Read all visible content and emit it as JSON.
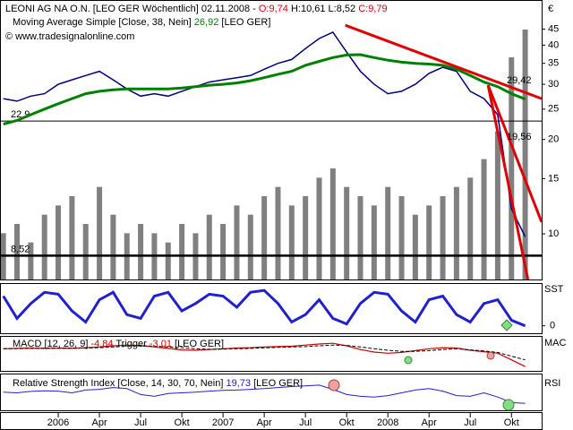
{
  "chart_data": {
    "type": "line",
    "header": {
      "instrument": "LEONI AG NA O.N. [LEO GER  Wöchentlich] 02.11.2008 - ",
      "open": "O:9,74",
      "hl": " H:10,61 L:8,52 ",
      "close": "C:9,79",
      "ma_label": "Moving Average Simple [Close, 38, Nein] ",
      "ma_value": "26,92",
      "ma_suffix": " [LEO GER]",
      "copyright": "© www.tradesignalonline.com",
      "currency": "€"
    },
    "log_scale": true,
    "xlim": [
      -4.24,
      35.2
    ],
    "xticks": [
      {
        "value": 0,
        "label": "2006"
      },
      {
        "value": 3,
        "label": "Apr"
      },
      {
        "value": 6,
        "label": "Jul"
      },
      {
        "value": 9,
        "label": "Okt"
      },
      {
        "value": 12,
        "label": "2007"
      },
      {
        "value": 15,
        "label": "Apr"
      },
      {
        "value": 18,
        "label": "Jul"
      },
      {
        "value": 21,
        "label": "Okt"
      },
      {
        "value": 24,
        "label": "2008"
      },
      {
        "value": 27,
        "label": "Apr"
      },
      {
        "value": 30,
        "label": "Jul"
      },
      {
        "value": 33,
        "label": "Okt"
      }
    ],
    "ylim": [
      7.15,
      55
    ],
    "yticks": [
      45,
      40,
      35,
      30,
      25,
      20,
      15,
      10
    ],
    "x": [
      -4,
      -3,
      -2,
      -1,
      0,
      1,
      2,
      3,
      4,
      5,
      6,
      7,
      8,
      9,
      10,
      11,
      12,
      13,
      14,
      15,
      16,
      17,
      18,
      19,
      20,
      21,
      22,
      23,
      24,
      25,
      26,
      27,
      28,
      29,
      30,
      31,
      32,
      33,
      34
    ],
    "price": {
      "color": "#000080",
      "values": [
        27,
        26.5,
        27.5,
        28,
        30,
        31,
        32,
        33,
        31,
        29,
        27.5,
        28,
        27.5,
        28.5,
        29.5,
        30.5,
        31,
        31.5,
        32,
        33.5,
        35,
        36,
        39,
        42,
        44,
        38,
        33,
        30,
        28,
        28.5,
        30,
        32.5,
        34,
        33,
        28.5,
        27,
        24,
        12,
        9.79
      ]
    },
    "ma": {
      "color": "#008000",
      "values": [
        22.4,
        23,
        24,
        25,
        26,
        27,
        28,
        28.5,
        28.8,
        29,
        29,
        29,
        29,
        29.2,
        29.5,
        29.8,
        30,
        30.3,
        30.8,
        31.5,
        32.3,
        33,
        34.5,
        35.5,
        36.5,
        37.2,
        37.3,
        36.5,
        35.8,
        35.3,
        35,
        34.8,
        34.5,
        33.5,
        32,
        30.5,
        29.5,
        28,
        26.92
      ]
    },
    "volume": {
      "color": "#808080",
      "ylim": [
        0,
        30
      ],
      "values": [
        5,
        6,
        4,
        7,
        8,
        9,
        6,
        10,
        7,
        5,
        6,
        5,
        4,
        6,
        5,
        7,
        6,
        8,
        7,
        9,
        10,
        8,
        9,
        11,
        12,
        10,
        9,
        8,
        10,
        9,
        7,
        8,
        9,
        10,
        11,
        13,
        16,
        24,
        27
      ]
    },
    "levels": [
      {
        "value": 22.9,
        "label": "22,9"
      },
      {
        "value": 8.52,
        "label": "8,52"
      }
    ],
    "trendlines": [
      {
        "x": [
          20.9,
          35.2
        ],
        "y": [
          46.3,
          27.0
        ],
        "label": "29,42",
        "color": "#e00000"
      },
      {
        "x": [
          31.3,
          35.2
        ],
        "y": [
          29.8,
          10.9
        ],
        "color": "#e00000"
      },
      {
        "x": [
          31.3,
          34.2
        ],
        "y": [
          29.8,
          7.15
        ],
        "label": "19,56",
        "color": "#e00000"
      }
    ],
    "sst": {
      "label": "SST",
      "ylim": [
        -20,
        110
      ],
      "yticks": [
        0
      ],
      "color": "#2020d0",
      "values": [
        80,
        20,
        60,
        90,
        85,
        40,
        10,
        70,
        90,
        30,
        20,
        80,
        90,
        40,
        60,
        85,
        80,
        50,
        90,
        95,
        60,
        10,
        30,
        70,
        20,
        5,
        60,
        90,
        85,
        40,
        10,
        70,
        80,
        30,
        10,
        60,
        70,
        15,
        0
      ]
    },
    "macd": {
      "label": "MAC",
      "title": "MACD [12, 26, 9] ",
      "value": "-4,84",
      "trigger_label": " Trigger ",
      "trigger_value": "-3,01",
      "suffix": " [LEO GER]",
      "ylim": [
        -6,
        3
      ],
      "color": "#d00000",
      "trigger_color": "#000000",
      "values": [
        0,
        0.1,
        0.2,
        0.1,
        0.2,
        0.1,
        0.3,
        0.5,
        0.8,
        1,
        0.9,
        0.5,
        0.1,
        -0.3,
        -0.4,
        -0.2,
        0,
        0.2,
        0.3,
        0.5,
        0.6,
        0.7,
        1,
        1.3,
        1.5,
        0.8,
        -0.2,
        -0.9,
        -1.2,
        -1,
        -0.5,
        0,
        0.3,
        0.2,
        -0.4,
        -0.8,
        -1.2,
        -3,
        -4.84
      ],
      "trigger": [
        0,
        0.05,
        0.1,
        0.12,
        0.15,
        0.15,
        0.2,
        0.3,
        0.5,
        0.7,
        0.8,
        0.7,
        0.5,
        0.3,
        0,
        -0.15,
        -0.1,
        0,
        0.1,
        0.25,
        0.4,
        0.5,
        0.6,
        0.8,
        1,
        0.9,
        0.5,
        0,
        -0.4,
        -0.7,
        -0.7,
        -0.5,
        -0.2,
        0,
        -0.3,
        -0.6,
        -1,
        -2,
        -3.01
      ]
    },
    "rsi": {
      "label": "RSI",
      "title": "Relative Strength Index [Close, 14, 30, 70, Nein] ",
      "value": "19,73",
      "suffix": " [LEO GER]",
      "ylim": [
        0,
        100
      ],
      "color": "#2020d0",
      "values": [
        52,
        50,
        54,
        56,
        55,
        50,
        58,
        60,
        65,
        62,
        45,
        40,
        48,
        50,
        52,
        55,
        57,
        58,
        60,
        62,
        65,
        68,
        70,
        72,
        60,
        45,
        40,
        38,
        42,
        50,
        58,
        62,
        55,
        42,
        40,
        50,
        38,
        22,
        19.73
      ]
    }
  }
}
